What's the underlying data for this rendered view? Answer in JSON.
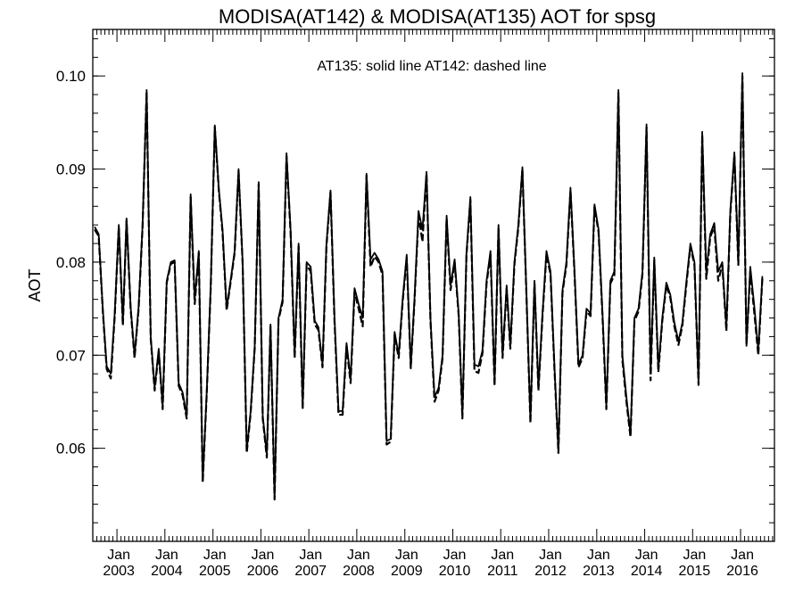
{
  "chart_data": {
    "type": "line",
    "title": "MODISA(AT142) & MODISA(AT135)  AOT for spsg",
    "annotation": "AT135: solid line   AT142: dashed line",
    "ylabel": "AOT",
    "ylim": [
      0.05,
      0.105
    ],
    "xlim": [
      "2002-07-01",
      "2016-09-15"
    ],
    "yticks": [
      0.06,
      0.07,
      0.08,
      0.09,
      0.1
    ],
    "ytick_labels": [
      "0.06",
      "0.07",
      "0.08",
      "0.09",
      "0.10"
    ],
    "xtick_month_label": "Jan",
    "xtick_years": [
      "2003",
      "2004",
      "2005",
      "2006",
      "2007",
      "2008",
      "2009",
      "2010",
      "2011",
      "2012",
      "2013",
      "2014",
      "2015",
      "2016"
    ],
    "grid": false,
    "series": [
      {
        "name": "AT135",
        "style": "solid",
        "start": "2002-07",
        "values": [
          0.0838,
          0.083,
          0.075,
          0.0688,
          0.068,
          0.0745,
          0.084,
          0.0735,
          0.0847,
          0.0752,
          0.07,
          0.0752,
          0.084,
          0.0985,
          0.072,
          0.0665,
          0.0707,
          0.0645,
          0.078,
          0.08,
          0.0802,
          0.067,
          0.066,
          0.0635,
          0.0873,
          0.076,
          0.0812,
          0.0565,
          0.0662,
          0.0775,
          0.0947,
          0.0878,
          0.0835,
          0.075,
          0.078,
          0.0812,
          0.09,
          0.08,
          0.0598,
          0.064,
          0.071,
          0.0886,
          0.0635,
          0.0593,
          0.0733,
          0.0547,
          0.074,
          0.076,
          0.0917,
          0.0835,
          0.07,
          0.082,
          0.0645,
          0.08,
          0.0795,
          0.0737,
          0.073,
          0.069,
          0.082,
          0.0877,
          0.0742,
          0.064,
          0.064,
          0.0713,
          0.0675,
          0.0772,
          0.0755,
          0.074,
          0.0895,
          0.0803,
          0.081,
          0.0803,
          0.079,
          0.0608,
          0.061,
          0.0725,
          0.07,
          0.076,
          0.0808,
          0.0688,
          0.076,
          0.0855,
          0.0835,
          0.0897,
          0.074,
          0.0655,
          0.0665,
          0.07,
          0.085,
          0.0775,
          0.0803,
          0.0745,
          0.0635,
          0.081,
          0.087,
          0.069,
          0.0688,
          0.0705,
          0.078,
          0.0812,
          0.067,
          0.084,
          0.07,
          0.0775,
          0.071,
          0.08,
          0.084,
          0.0902,
          0.077,
          0.063,
          0.078,
          0.0665,
          0.0745,
          0.0812,
          0.079,
          0.0685,
          0.0598,
          0.077,
          0.08,
          0.088,
          0.0793,
          0.069,
          0.07,
          0.075,
          0.0745,
          0.0862,
          0.0835,
          0.0742,
          0.0645,
          0.078,
          0.079,
          0.0985,
          0.07,
          0.0655,
          0.0615,
          0.074,
          0.075,
          0.079,
          0.0948,
          0.068,
          0.0805,
          0.0685,
          0.074,
          0.0778,
          0.0765,
          0.0735,
          0.0715,
          0.0735,
          0.078,
          0.082,
          0.08,
          0.067,
          0.094,
          0.079,
          0.083,
          0.0842,
          0.079,
          0.08,
          0.073,
          0.0855,
          0.0918,
          0.08,
          0.1003,
          0.071,
          0.0795,
          0.0752,
          0.0705,
          0.0785
        ]
      },
      {
        "name": "AT142",
        "style": "dashed",
        "start": "2002-07",
        "values": [
          0.0835,
          0.0828,
          0.0748,
          0.0685,
          0.0675,
          0.0742,
          0.0838,
          0.0732,
          0.0845,
          0.075,
          0.0697,
          0.075,
          0.0838,
          0.0983,
          0.0718,
          0.0662,
          0.0704,
          0.0642,
          0.0778,
          0.0798,
          0.08,
          0.0667,
          0.0657,
          0.0632,
          0.087,
          0.0755,
          0.081,
          0.0563,
          0.066,
          0.0772,
          0.0945,
          0.0876,
          0.0832,
          0.0748,
          0.0778,
          0.081,
          0.0898,
          0.0798,
          0.0595,
          0.0638,
          0.0708,
          0.0884,
          0.0632,
          0.059,
          0.0731,
          0.0545,
          0.0738,
          0.0757,
          0.0914,
          0.0832,
          0.0697,
          0.0817,
          0.0642,
          0.0797,
          0.079,
          0.0733,
          0.0727,
          0.0687,
          0.0817,
          0.0875,
          0.0738,
          0.0636,
          0.0636,
          0.071,
          0.067,
          0.0768,
          0.075,
          0.0731,
          0.0893,
          0.0795,
          0.0806,
          0.08,
          0.0786,
          0.0604,
          0.0607,
          0.0722,
          0.0697,
          0.0757,
          0.0805,
          0.0686,
          0.0757,
          0.085,
          0.0822,
          0.0895,
          0.0737,
          0.065,
          0.0662,
          0.0697,
          0.0847,
          0.077,
          0.08,
          0.0742,
          0.0632,
          0.0807,
          0.0867,
          0.0683,
          0.0681,
          0.0702,
          0.0777,
          0.0808,
          0.0667,
          0.0837,
          0.0697,
          0.0772,
          0.0707,
          0.0797,
          0.0837,
          0.09,
          0.0767,
          0.0627,
          0.0777,
          0.0662,
          0.0742,
          0.0808,
          0.0787,
          0.0682,
          0.0595,
          0.0767,
          0.0797,
          0.0877,
          0.079,
          0.0687,
          0.0697,
          0.0747,
          0.0742,
          0.086,
          0.0832,
          0.0738,
          0.0642,
          0.0777,
          0.0786,
          0.0982,
          0.0695,
          0.065,
          0.0612,
          0.0737,
          0.0747,
          0.0787,
          0.0945,
          0.0673,
          0.0802,
          0.0682,
          0.0737,
          0.0775,
          0.0762,
          0.0731,
          0.0711,
          0.0732,
          0.0777,
          0.0817,
          0.0797,
          0.0668,
          0.0937,
          0.0782,
          0.0827,
          0.0838,
          0.078,
          0.0797,
          0.0726,
          0.0852,
          0.0915,
          0.0797,
          0.1,
          0.0711,
          0.079,
          0.0745,
          0.07,
          0.0783
        ]
      }
    ]
  }
}
